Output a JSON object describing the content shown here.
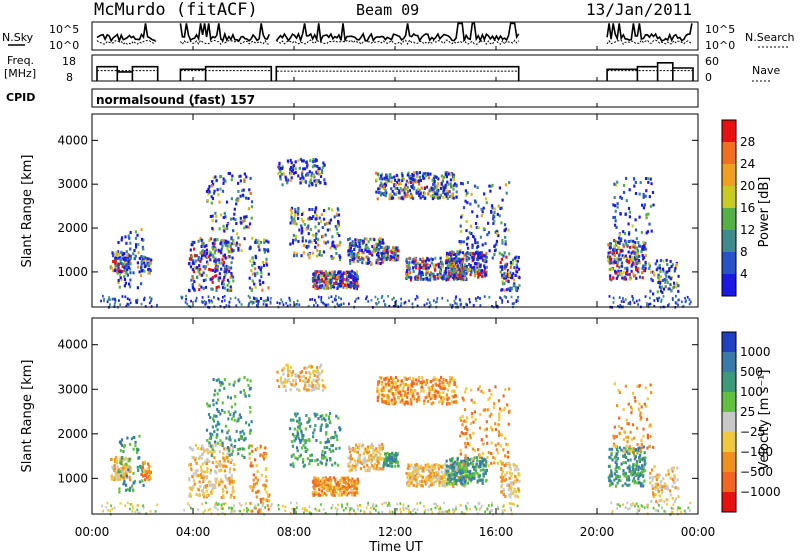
{
  "header": {
    "station": "McMurdo (fitACF)",
    "beam": "Beam 09",
    "date": "13/Jan/2011"
  },
  "strip_labels": {
    "nsky": "N.Sky",
    "nsky_ticks": [
      "10^5",
      "10^0"
    ],
    "nsearch": "N.Search",
    "nsearch_ticks": [
      "10^5",
      "10^0"
    ],
    "freq_line1": "Freq.",
    "freq_line2": "[MHz]",
    "freq_ticks": [
      "18",
      "8"
    ],
    "nave": "Nave",
    "nave_ticks": [
      "60",
      "0"
    ],
    "cpid": "CPID",
    "cpid_value": "normalsound (fast) 157"
  },
  "axes": {
    "ylabel": "Slant Range [km]",
    "xlabel": "Time UT"
  },
  "chart_data": [
    {
      "type": "heatmap",
      "title": "",
      "xlabel": "Time UT",
      "ylabel": "Slant Range [km]",
      "x_ticks": [
        "00:00",
        "04:00",
        "08:00",
        "12:00",
        "16:00",
        "20:00",
        "00:00"
      ],
      "x_range_hours": [
        0,
        24
      ],
      "y_ticks": [
        1000,
        2000,
        3000,
        4000
      ],
      "ylim": [
        200,
        4600
      ],
      "colorbar": {
        "label": "Power [dB]",
        "ticks": [
          "4",
          "8",
          "12",
          "16",
          "20",
          "24",
          "28"
        ],
        "colors": [
          "#1a18e6",
          "#2a52c8",
          "#3f8a8a",
          "#55b04a",
          "#c8cc22",
          "#f0a020",
          "#f07020",
          "#e81010"
        ]
      },
      "data_gaps_hours": [
        [
          2.6,
          3.5
        ],
        [
          7.1,
          7.3
        ],
        [
          16.9,
          20.4
        ]
      ]
    },
    {
      "type": "heatmap",
      "title": "",
      "xlabel": "Time UT",
      "ylabel": "Slant Range [km]",
      "x_ticks": [
        "00:00",
        "04:00",
        "08:00",
        "12:00",
        "16:00",
        "20:00",
        "00:00"
      ],
      "x_range_hours": [
        0,
        24
      ],
      "y_ticks": [
        1000,
        2000,
        3000,
        4000
      ],
      "ylim": [
        200,
        4600
      ],
      "colorbar": {
        "label": "Velocity [m s⁻¹]",
        "ticks": [
          "1000",
          "500",
          "100",
          "25",
          "−25",
          "−100",
          "−500",
          "−1000"
        ],
        "colors": [
          "#2040c0",
          "#3a7aa8",
          "#3c9a7a",
          "#62c040",
          "#c8c8c8",
          "#f0c840",
          "#f09020",
          "#f06820",
          "#e81010"
        ]
      },
      "data_gaps_hours": [
        [
          2.6,
          3.5
        ],
        [
          7.1,
          7.3
        ],
        [
          16.9,
          20.4
        ]
      ]
    }
  ],
  "colors": {
    "axis": "#000000",
    "missing": "#ffffff"
  }
}
